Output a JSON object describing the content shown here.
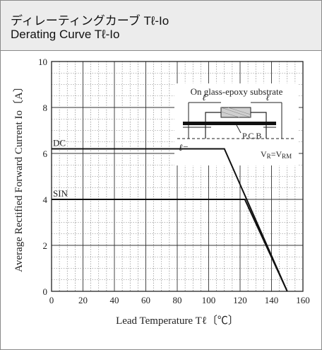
{
  "header": {
    "title_jp": "ディレーティングカーブ Tℓ-Io",
    "title_en": "Derating Curve Tℓ-Io"
  },
  "chart_data": {
    "type": "line",
    "xlabel": "Lead Temperature  Tℓ〔℃〕",
    "ylabel": "Average Rectified Forward Current  Io〔A〕",
    "xlim": [
      0,
      160
    ],
    "ylim": [
      0,
      10
    ],
    "x_ticks": [
      0,
      20,
      40,
      60,
      80,
      100,
      120,
      140,
      160
    ],
    "y_ticks": [
      0,
      2,
      4,
      6,
      8,
      10
    ],
    "grid": true,
    "series": [
      {
        "name": "DC",
        "x": [
          0,
          110,
          150
        ],
        "y": [
          6.2,
          6.2,
          0
        ]
      },
      {
        "name": "SIN",
        "x": [
          0,
          123,
          150
        ],
        "y": [
          4,
          4,
          0
        ]
      }
    ],
    "annotations": {
      "inset_title": "On glass-epoxy substrate",
      "dim_left": "ℓ",
      "dim_right": "ℓ",
      "pcb_label": "P.C.B",
      "l_eq": "ℓ=",
      "vr_vrm": "VR=VRM"
    }
  }
}
